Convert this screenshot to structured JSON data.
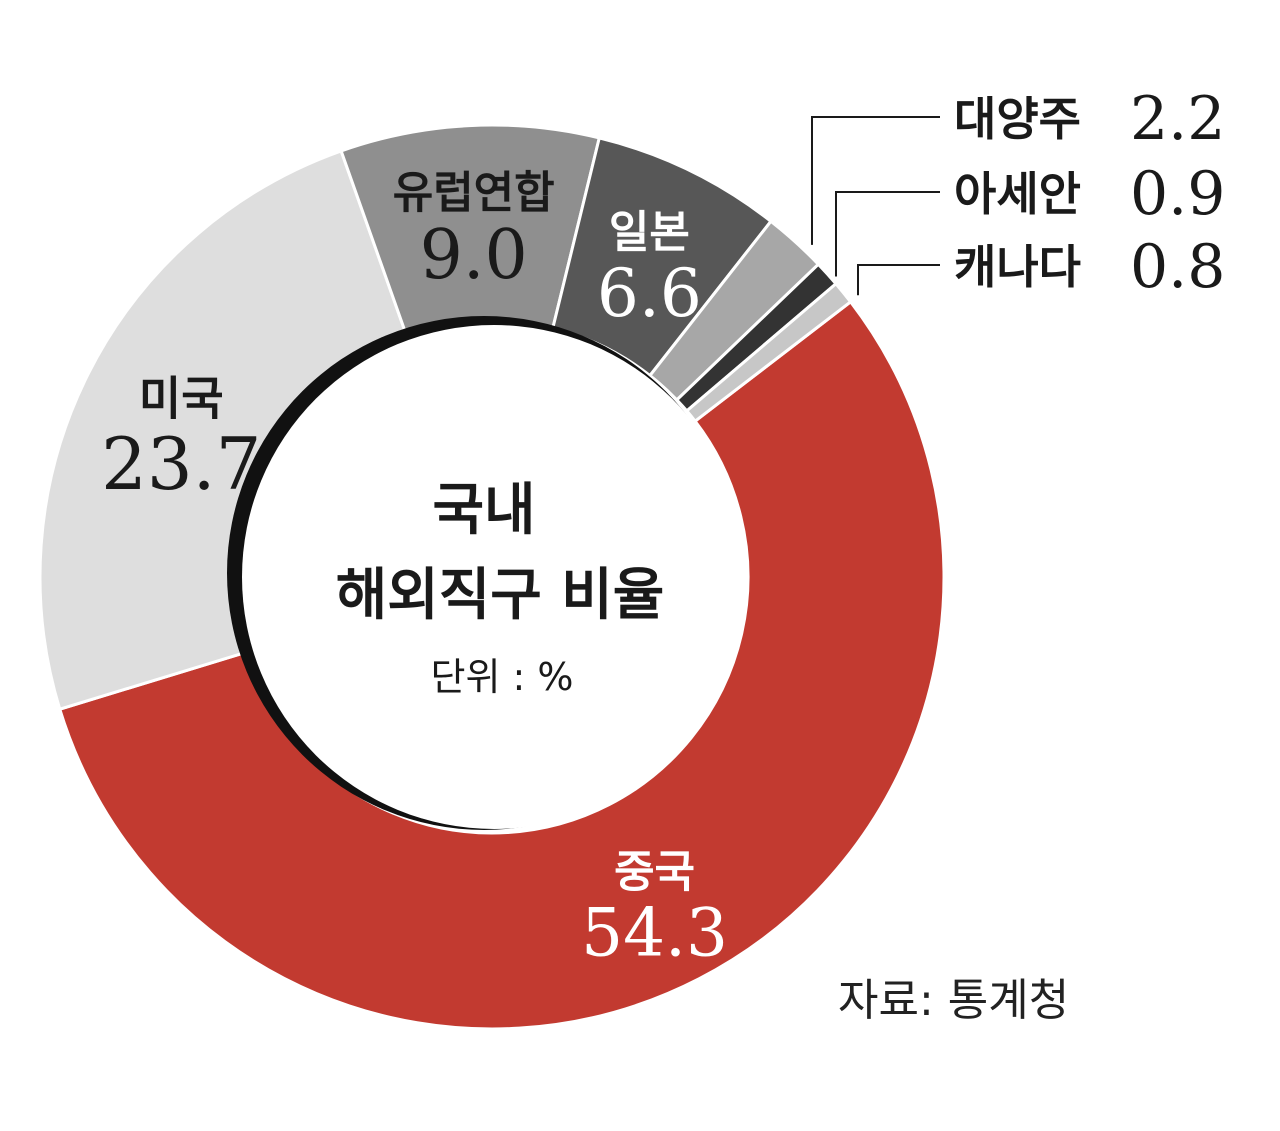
{
  "chart_data": {
    "type": "pie",
    "categories": [
      "중국",
      "미국",
      "유럽연합",
      "일본",
      "대양주",
      "아세안",
      "캐나다"
    ],
    "values": [
      54.3,
      23.7,
      9.0,
      6.6,
      2.2,
      0.9,
      0.8
    ],
    "value_labels": [
      "54.3",
      "23.7",
      "9.0",
      "6.6",
      "2.2",
      "0.9",
      "0.8"
    ],
    "colors": [
      "#c23a30",
      "#dedede",
      "#8f8f8f",
      "#575757",
      "#a7a7a7",
      "#333333",
      "#c7c7c7"
    ],
    "title": "국내 해외직구 비율",
    "title_lines": [
      "국내",
      "해외직구 비율"
    ],
    "unit": "단위 : %",
    "source": "자료: 통계청"
  }
}
